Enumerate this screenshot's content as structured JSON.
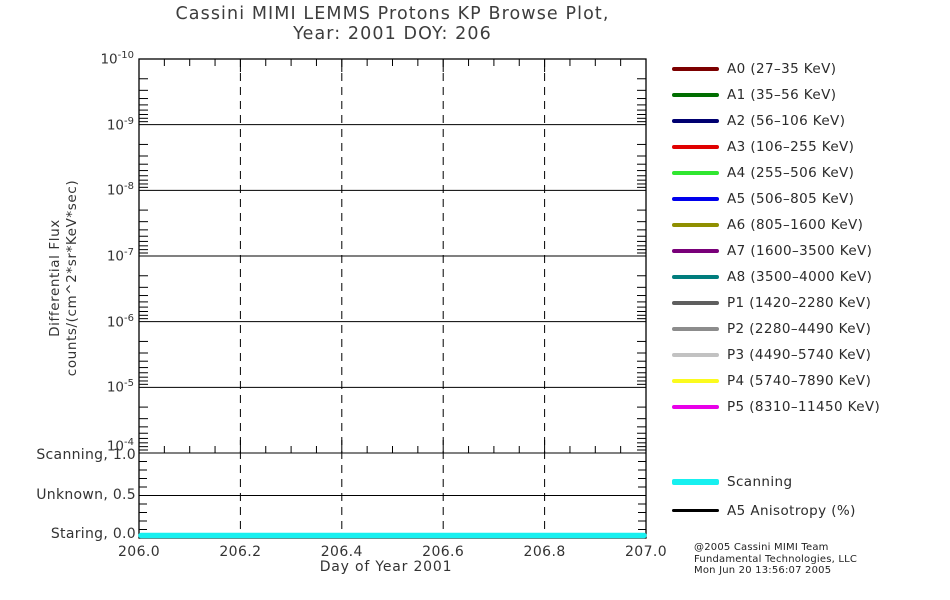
{
  "title": {
    "line1": "Cassini MIMI LEMMS Protons KP Browse Plot,",
    "line2": "Year: 2001 DOY: 206"
  },
  "footer": {
    "line1": "@2005 Cassini MIMI Team",
    "line2": "Fundamental Technologies, LLC",
    "line3": "Mon Jun 20 13:56:07 2005"
  },
  "chart_data": {
    "type": "line",
    "title": "Cassini MIMI LEMMS Protons KP Browse Plot, Year: 2001 DOY: 206",
    "grid": {
      "horizontal": "solid",
      "vertical": "dashed",
      "legend_position": "right"
    },
    "x_axis": {
      "label": "Day of Year 2001",
      "min": 206.0,
      "max": 207.0,
      "tick_values": [
        206.0,
        206.2,
        206.4,
        206.6,
        206.8,
        207.0
      ],
      "tick_labels": [
        "206.0",
        "206.2",
        "206.4",
        "206.6",
        "206.8",
        "207.0"
      ],
      "grid_values": [
        206.2,
        206.4,
        206.6,
        206.8
      ],
      "minor_step": 0.05
    },
    "y_axis_flux": {
      "label_line1": "Differential Flux",
      "label_line2": "counts/(cm^2*sr*KeV*sec)",
      "scale": "log",
      "top_exponent": -10,
      "bottom_exponent": -4,
      "tick_exponents": [
        -10,
        -9,
        -8,
        -7,
        -6,
        -5,
        -4
      ],
      "tick_base": "10"
    },
    "y_axis_status": {
      "max": 1.0,
      "min": 0.0,
      "ticks": [
        {
          "label": "Scanning, 1.0",
          "value": 1.0
        },
        {
          "label": "Unknown, 0.5",
          "value": 0.5
        },
        {
          "label": "Staring, 0.0",
          "value": 0.0
        }
      ],
      "grid_values": [
        0.5
      ],
      "minor_step": 0.1
    },
    "series": [
      {
        "name": "A0",
        "legend_label": "A0 (27–35 KeV)",
        "color": "#7c0000",
        "values": []
      },
      {
        "name": "A1",
        "legend_label": "A1 (35–56 KeV)",
        "color": "#006e00",
        "values": []
      },
      {
        "name": "A2",
        "legend_label": "A2 (56–106 KeV)",
        "color": "#000070",
        "values": []
      },
      {
        "name": "A3",
        "legend_label": "A3 (106–255 KeV)",
        "color": "#e00000",
        "values": []
      },
      {
        "name": "A4",
        "legend_label": "A4 (255–506 KeV)",
        "color": "#30e630",
        "values": []
      },
      {
        "name": "A5",
        "legend_label": "A5 (506–805 KeV)",
        "color": "#0000ec",
        "values": []
      },
      {
        "name": "A6",
        "legend_label": "A6 (805–1600 KeV)",
        "color": "#8f8f00",
        "values": []
      },
      {
        "name": "A7",
        "legend_label": "A7 (1600–3500 KeV)",
        "color": "#790079",
        "values": []
      },
      {
        "name": "A8",
        "legend_label": "A8 (3500–4000 KeV)",
        "color": "#007d7d",
        "values": []
      },
      {
        "name": "P1",
        "legend_label": "P1 (1420–2280 KeV)",
        "color": "#5e5e5e",
        "values": []
      },
      {
        "name": "P2",
        "legend_label": "P2 (2280–4490 KeV)",
        "color": "#8c8c8c",
        "values": []
      },
      {
        "name": "P3",
        "legend_label": "P3 (4490–5740 KeV)",
        "color": "#c2c2c2",
        "values": []
      },
      {
        "name": "P4",
        "legend_label": "P4 (5740–7890 KeV)",
        "color": "#fbfb1e",
        "values": []
      },
      {
        "name": "P5",
        "legend_label": "P5 (8310–11450 KeV)",
        "color": "#e800e8",
        "values": []
      }
    ],
    "status_series": {
      "name": "Scanning",
      "color": "#17f0f0",
      "x": [
        206.0,
        207.0
      ],
      "y": [
        0.0,
        0.0
      ]
    },
    "extra_legend": [
      {
        "label": "Scanning",
        "color": "#17f0f0",
        "thickness": 6
      },
      {
        "label": "A5 Anisotropy (%)",
        "color": "#000000",
        "thickness": 3
      }
    ]
  }
}
